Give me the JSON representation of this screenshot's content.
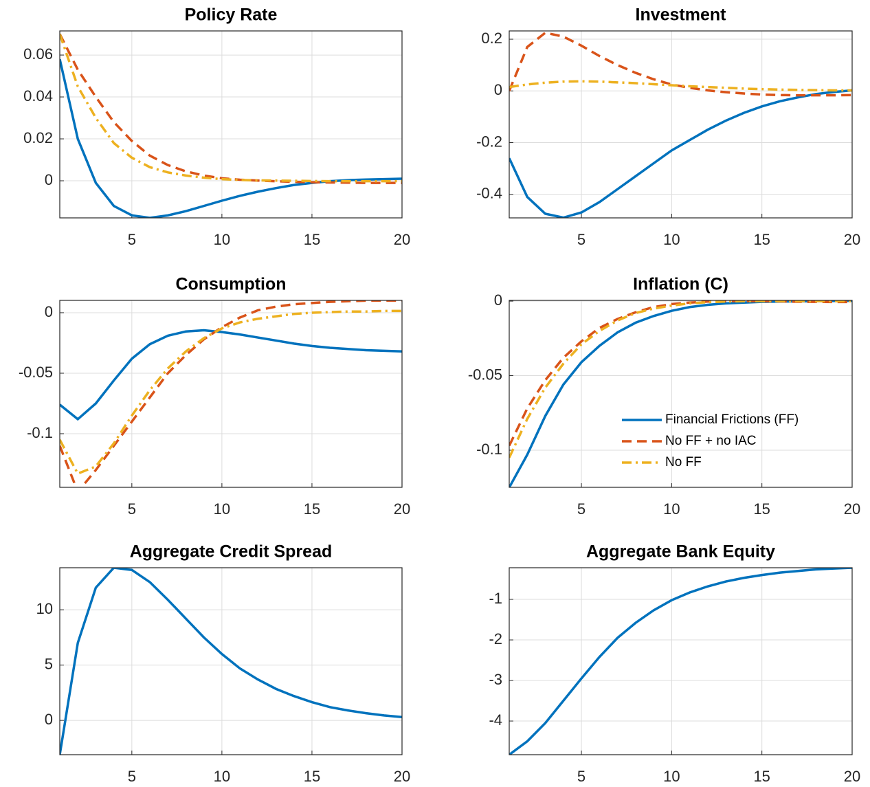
{
  "chart_data": [
    {
      "type": "line",
      "title": "Policy Rate",
      "x": [
        1,
        2,
        3,
        4,
        5,
        6,
        7,
        8,
        9,
        10,
        11,
        12,
        13,
        14,
        15,
        16,
        17,
        18,
        19,
        20
      ],
      "xlim": [
        1,
        20
      ],
      "xticks": [
        5,
        10,
        15,
        20
      ],
      "ylim": [
        -0.0177,
        0.0715
      ],
      "yticks": [
        0,
        0.02,
        0.04,
        0.06
      ],
      "grid": true,
      "series": [
        {
          "color": "#0072bd",
          "linestyle": "solid",
          "values": [
            0.058,
            0.02,
            -0.001,
            -0.012,
            -0.0165,
            -0.0177,
            -0.0165,
            -0.0145,
            -0.012,
            -0.0095,
            -0.0072,
            -0.0052,
            -0.0035,
            -0.002,
            -0.001,
            -0.0002,
            0.0003,
            0.0006,
            0.0008,
            0.001
          ]
        },
        {
          "color": "#d95319",
          "linestyle": "dashed",
          "values": [
            0.07,
            0.053,
            0.04,
            0.028,
            0.019,
            0.012,
            0.0075,
            0.0045,
            0.0025,
            0.0012,
            0.0005,
            0.0001,
            -0.0002,
            -0.0005,
            -0.0007,
            -0.0008,
            -0.0009,
            -0.001,
            -0.001,
            -0.001
          ]
        },
        {
          "color": "#edb120",
          "linestyle": "dashdot",
          "values": [
            0.07,
            0.045,
            0.03,
            0.018,
            0.011,
            0.0065,
            0.004,
            0.0025,
            0.0015,
            0.0008,
            0.0004,
            0.0002,
            0.0001,
            0,
            -0.0001,
            -0.0002,
            -0.0002,
            -0.0002,
            -0.0002,
            -0.0002
          ]
        }
      ]
    },
    {
      "type": "line",
      "title": "Investment",
      "x": [
        1,
        2,
        3,
        4,
        5,
        6,
        7,
        8,
        9,
        10,
        11,
        12,
        13,
        14,
        15,
        16,
        17,
        18,
        19,
        20
      ],
      "xlim": [
        1,
        20
      ],
      "xticks": [
        5,
        10,
        15,
        20
      ],
      "ylim": [
        -0.491,
        0.232
      ],
      "yticks": [
        -0.4,
        -0.2,
        0,
        0.2
      ],
      "grid": true,
      "series": [
        {
          "color": "#0072bd",
          "linestyle": "solid",
          "values": [
            -0.26,
            -0.41,
            -0.475,
            -0.49,
            -0.47,
            -0.43,
            -0.38,
            -0.33,
            -0.28,
            -0.23,
            -0.19,
            -0.15,
            -0.115,
            -0.085,
            -0.06,
            -0.04,
            -0.025,
            -0.012,
            -0.004,
            0.002
          ]
        },
        {
          "color": "#d95319",
          "linestyle": "dashed",
          "values": [
            0,
            0.17,
            0.225,
            0.21,
            0.175,
            0.135,
            0.1,
            0.07,
            0.045,
            0.025,
            0.012,
            0.002,
            -0.005,
            -0.01,
            -0.014,
            -0.016,
            -0.017,
            -0.017,
            -0.017,
            -0.016
          ]
        },
        {
          "color": "#edb120",
          "linestyle": "dashdot",
          "values": [
            0.015,
            0.025,
            0.032,
            0.036,
            0.037,
            0.036,
            0.033,
            0.03,
            0.026,
            0.022,
            0.018,
            0.015,
            0.012,
            0.009,
            0.007,
            0.005,
            0.004,
            0.003,
            0.002,
            0.002
          ]
        }
      ]
    },
    {
      "type": "line",
      "title": "Consumption",
      "x": [
        1,
        2,
        3,
        4,
        5,
        6,
        7,
        8,
        9,
        10,
        11,
        12,
        13,
        14,
        15,
        16,
        17,
        18,
        19,
        20
      ],
      "xlim": [
        1,
        20
      ],
      "xticks": [
        5,
        10,
        15,
        20
      ],
      "ylim": [
        -0.1443,
        0.0102
      ],
      "yticks": [
        -0.1,
        -0.05,
        0
      ],
      "grid": true,
      "series": [
        {
          "color": "#0072bd",
          "linestyle": "solid",
          "values": [
            -0.076,
            -0.088,
            -0.075,
            -0.056,
            -0.038,
            -0.026,
            -0.019,
            -0.0155,
            -0.0145,
            -0.016,
            -0.018,
            -0.0205,
            -0.023,
            -0.0255,
            -0.0275,
            -0.029,
            -0.03,
            -0.031,
            -0.0315,
            -0.032
          ]
        },
        {
          "color": "#d95319",
          "linestyle": "dashed",
          "values": [
            -0.11,
            -0.148,
            -0.13,
            -0.11,
            -0.09,
            -0.07,
            -0.05,
            -0.035,
            -0.022,
            -0.012,
            -0.004,
            0.002,
            0.005,
            0.007,
            0.008,
            0.009,
            0.0095,
            0.01,
            0.01,
            0.01
          ]
        },
        {
          "color": "#edb120",
          "linestyle": "dashdot",
          "values": [
            -0.105,
            -0.133,
            -0.127,
            -0.108,
            -0.085,
            -0.064,
            -0.046,
            -0.032,
            -0.021,
            -0.013,
            -0.008,
            -0.005,
            -0.003,
            -0.001,
            0,
            0.0005,
            0.001,
            0.001,
            0.0015,
            0.0015
          ]
        }
      ]
    },
    {
      "type": "line",
      "title": "Inflation (C)",
      "x": [
        1,
        2,
        3,
        4,
        5,
        6,
        7,
        8,
        9,
        10,
        11,
        12,
        13,
        14,
        15,
        16,
        17,
        18,
        19,
        20
      ],
      "xlim": [
        1,
        20
      ],
      "xticks": [
        5,
        10,
        15,
        20
      ],
      "ylim": [
        -0.1249,
        0.0005
      ],
      "yticks": [
        -0.1,
        -0.05,
        0
      ],
      "grid": true,
      "legend": "southeast",
      "series": [
        {
          "name": "Financial Frictions (FF)",
          "color": "#0072bd",
          "linestyle": "solid",
          "values": [
            -0.125,
            -0.103,
            -0.077,
            -0.056,
            -0.041,
            -0.03,
            -0.021,
            -0.0145,
            -0.01,
            -0.0065,
            -0.004,
            -0.0025,
            -0.0015,
            -0.001,
            -0.0005,
            -0.0003,
            -0.0002,
            0,
            0.0001,
            0.0002
          ]
        },
        {
          "name": "No FF + no IAC",
          "color": "#d95319",
          "linestyle": "dashed",
          "values": [
            -0.097,
            -0.072,
            -0.053,
            -0.038,
            -0.027,
            -0.018,
            -0.012,
            -0.0075,
            -0.004,
            -0.002,
            -0.001,
            -0.0003,
            0,
            0,
            0,
            -0.0002,
            -0.0004,
            -0.0005,
            -0.0006,
            -0.0006
          ]
        },
        {
          "name": "No FF",
          "color": "#edb120",
          "linestyle": "dashdot",
          "values": [
            -0.105,
            -0.079,
            -0.058,
            -0.042,
            -0.029,
            -0.02,
            -0.013,
            -0.008,
            -0.005,
            -0.003,
            -0.0015,
            -0.0007,
            -0.0003,
            0,
            0,
            0,
            0,
            0,
            0,
            0
          ]
        }
      ]
    },
    {
      "type": "line",
      "title": "Aggregate Credit Spread",
      "x": [
        1,
        2,
        3,
        4,
        5,
        6,
        7,
        8,
        9,
        10,
        11,
        12,
        13,
        14,
        15,
        16,
        17,
        18,
        19,
        20
      ],
      "xlim": [
        1,
        20
      ],
      "xticks": [
        5,
        10,
        15,
        20
      ],
      "ylim": [
        -3.1,
        13.8
      ],
      "yticks": [
        0,
        5,
        10
      ],
      "grid": true,
      "series": [
        {
          "color": "#0072bd",
          "linestyle": "solid",
          "values": [
            -3.1,
            7,
            12,
            13.8,
            13.6,
            12.5,
            10.9,
            9.2,
            7.5,
            6,
            4.7,
            3.7,
            2.85,
            2.2,
            1.65,
            1.2,
            0.9,
            0.65,
            0.45,
            0.3
          ]
        }
      ]
    },
    {
      "type": "line",
      "title": "Aggregate Bank Equity",
      "x": [
        1,
        2,
        3,
        4,
        5,
        6,
        7,
        8,
        9,
        10,
        11,
        12,
        13,
        14,
        15,
        16,
        17,
        18,
        19,
        20
      ],
      "xlim": [
        1,
        20
      ],
      "xticks": [
        5,
        10,
        15,
        20
      ],
      "ylim": [
        -4.83,
        -0.22
      ],
      "yticks": [
        -4,
        -3,
        -2,
        -1
      ],
      "grid": true,
      "series": [
        {
          "color": "#0072bd",
          "linestyle": "solid",
          "values": [
            -4.83,
            -4.5,
            -4.05,
            -3.5,
            -2.95,
            -2.42,
            -1.95,
            -1.58,
            -1.27,
            -1.02,
            -0.83,
            -0.68,
            -0.56,
            -0.47,
            -0.4,
            -0.34,
            -0.3,
            -0.26,
            -0.24,
            -0.22
          ]
        }
      ]
    }
  ]
}
